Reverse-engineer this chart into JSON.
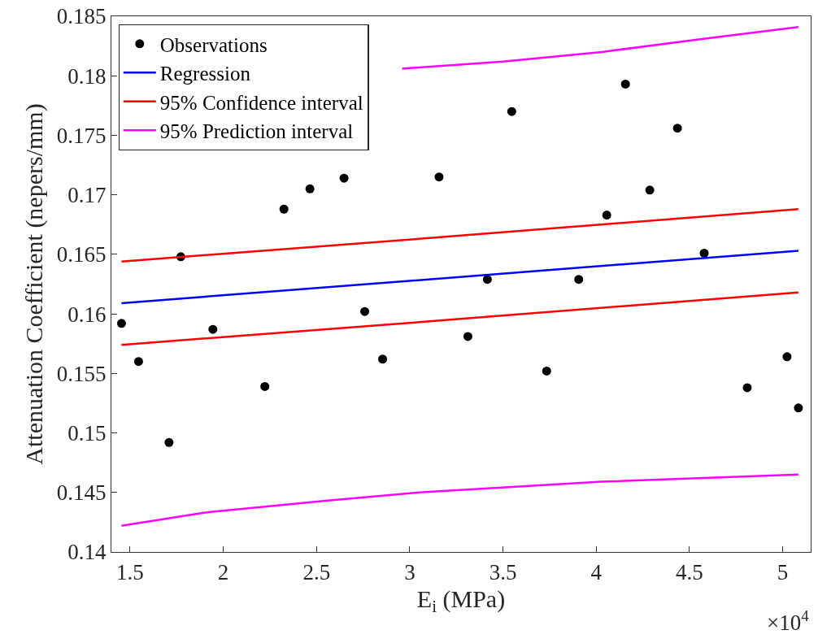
{
  "chart_data": {
    "type": "scatter",
    "xlabel": "E$_{i}$ (MPa)",
    "ylabel": "Attenuation Coefficient (nepers/mm)",
    "annotations": [
      "×10$^{4}$"
    ],
    "xlim": [
      1.4,
      5.15
    ],
    "xticks": [
      1.5,
      2,
      2.5,
      3,
      3.5,
      4,
      4.5,
      5
    ],
    "ylim": [
      0.14,
      0.185
    ],
    "yticks": [
      0.14,
      0.145,
      0.15,
      0.155,
      0.16,
      0.165,
      0.17,
      0.175,
      0.18,
      0.185
    ],
    "grid": false,
    "legend": "top left",
    "series": [
      {
        "name": "Observations",
        "marker": "circle",
        "color": "#000000",
        "x": [
          1.4543,
          1.5457,
          1.709,
          1.7722,
          1.9442,
          2.2229,
          2.3253,
          2.4646,
          2.6475,
          2.7586,
          2.8544,
          3.1571,
          3.3117,
          3.4162,
          3.5469,
          3.7341,
          3.9061,
          4.0563,
          4.1566,
          4.2872,
          4.4354,
          4.5789,
          4.8098,
          5.0232,
          5.0842
        ],
        "values": [
          0.1592,
          0.156,
          0.1492,
          0.1648,
          0.1587,
          0.1539,
          0.1688,
          0.1705,
          0.1714,
          0.1602,
          0.1562,
          0.1715,
          0.1581,
          0.1629,
          0.177,
          0.1552,
          0.1629,
          0.1683,
          0.1793,
          0.1704,
          0.1756,
          0.1651,
          0.1538,
          0.1564,
          0.1521
        ]
      },
      {
        "name": "Regression",
        "type": "line",
        "color": "#0000ff",
        "x": [
          1.4543,
          5.0842
        ],
        "values": [
          0.1609,
          0.1653
        ]
      },
      {
        "name": "95% Confidence interval",
        "type": "line",
        "color": "#ff0000",
        "x": [
          1.4543,
          3.0504,
          5.0842
        ],
        "values": [
          0.1644,
          0.1663,
          0.1688
        ]
      },
      {
        "type": "line",
        "color": "#ff0000",
        "x": [
          1.4543,
          3.0504,
          5.0842
        ],
        "values": [
          0.1574,
          0.1593,
          0.1618
        ]
      },
      {
        "name": "95% Prediction interval",
        "type": "line",
        "color": "#ff00ff",
        "x": [
          1.4543,
          1.8963,
          2.5496,
          3.0504,
          4.0302,
          5.0842
        ],
        "values": [
          0.1422,
          0.1433,
          0.1443,
          0.145,
          0.1459,
          0.1465
        ]
      },
      {
        "type": "line",
        "color": "#ff00ff",
        "x": [
          2.96,
          3.5,
          4.0302,
          4.5746,
          5.0842
        ],
        "values": [
          0.1806,
          0.1812,
          0.182,
          0.1831,
          0.1841
        ]
      }
    ]
  }
}
